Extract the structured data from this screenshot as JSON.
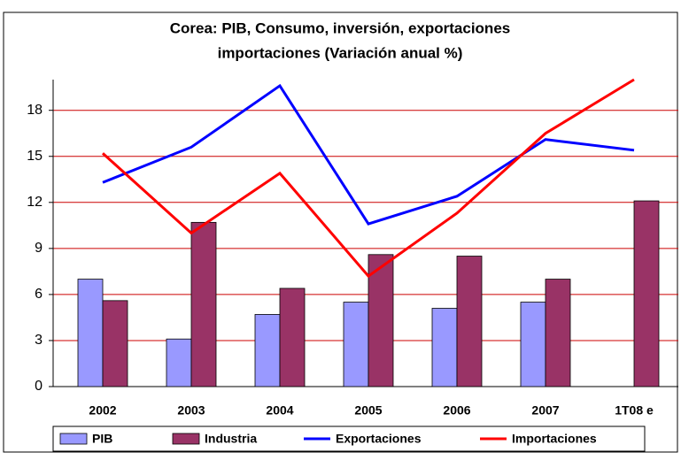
{
  "chart_data": {
    "type": "bar-line",
    "title": [
      "Corea: PIB, Consumo, inversión, exportaciones",
      "importaciones (Variación anual %)"
    ],
    "categories": [
      "2002",
      "2003",
      "2004",
      "2005",
      "2006",
      "2007",
      "1T08 e"
    ],
    "series": [
      {
        "name": "PIB",
        "type": "bar",
        "color": "#9999ff",
        "values": [
          7.0,
          3.1,
          4.7,
          5.5,
          5.1,
          5.5,
          null
        ]
      },
      {
        "name": "Industria",
        "type": "bar",
        "color": "#993366",
        "values": [
          5.6,
          10.7,
          6.4,
          8.6,
          8.5,
          7.0,
          12.1
        ]
      },
      {
        "name": "Exportaciones",
        "type": "line",
        "color": "#0000ff",
        "values": [
          13.3,
          15.6,
          19.6,
          10.6,
          12.4,
          16.1,
          15.4
        ]
      },
      {
        "name": "Importaciones",
        "type": "line",
        "color": "#ff0000",
        "values": [
          15.2,
          10.0,
          13.9,
          7.2,
          11.3,
          16.5,
          20.0
        ]
      }
    ],
    "ylim": [
      0,
      20
    ],
    "yticks": [
      0,
      3,
      6,
      9,
      12,
      15,
      18
    ],
    "grid": true
  }
}
